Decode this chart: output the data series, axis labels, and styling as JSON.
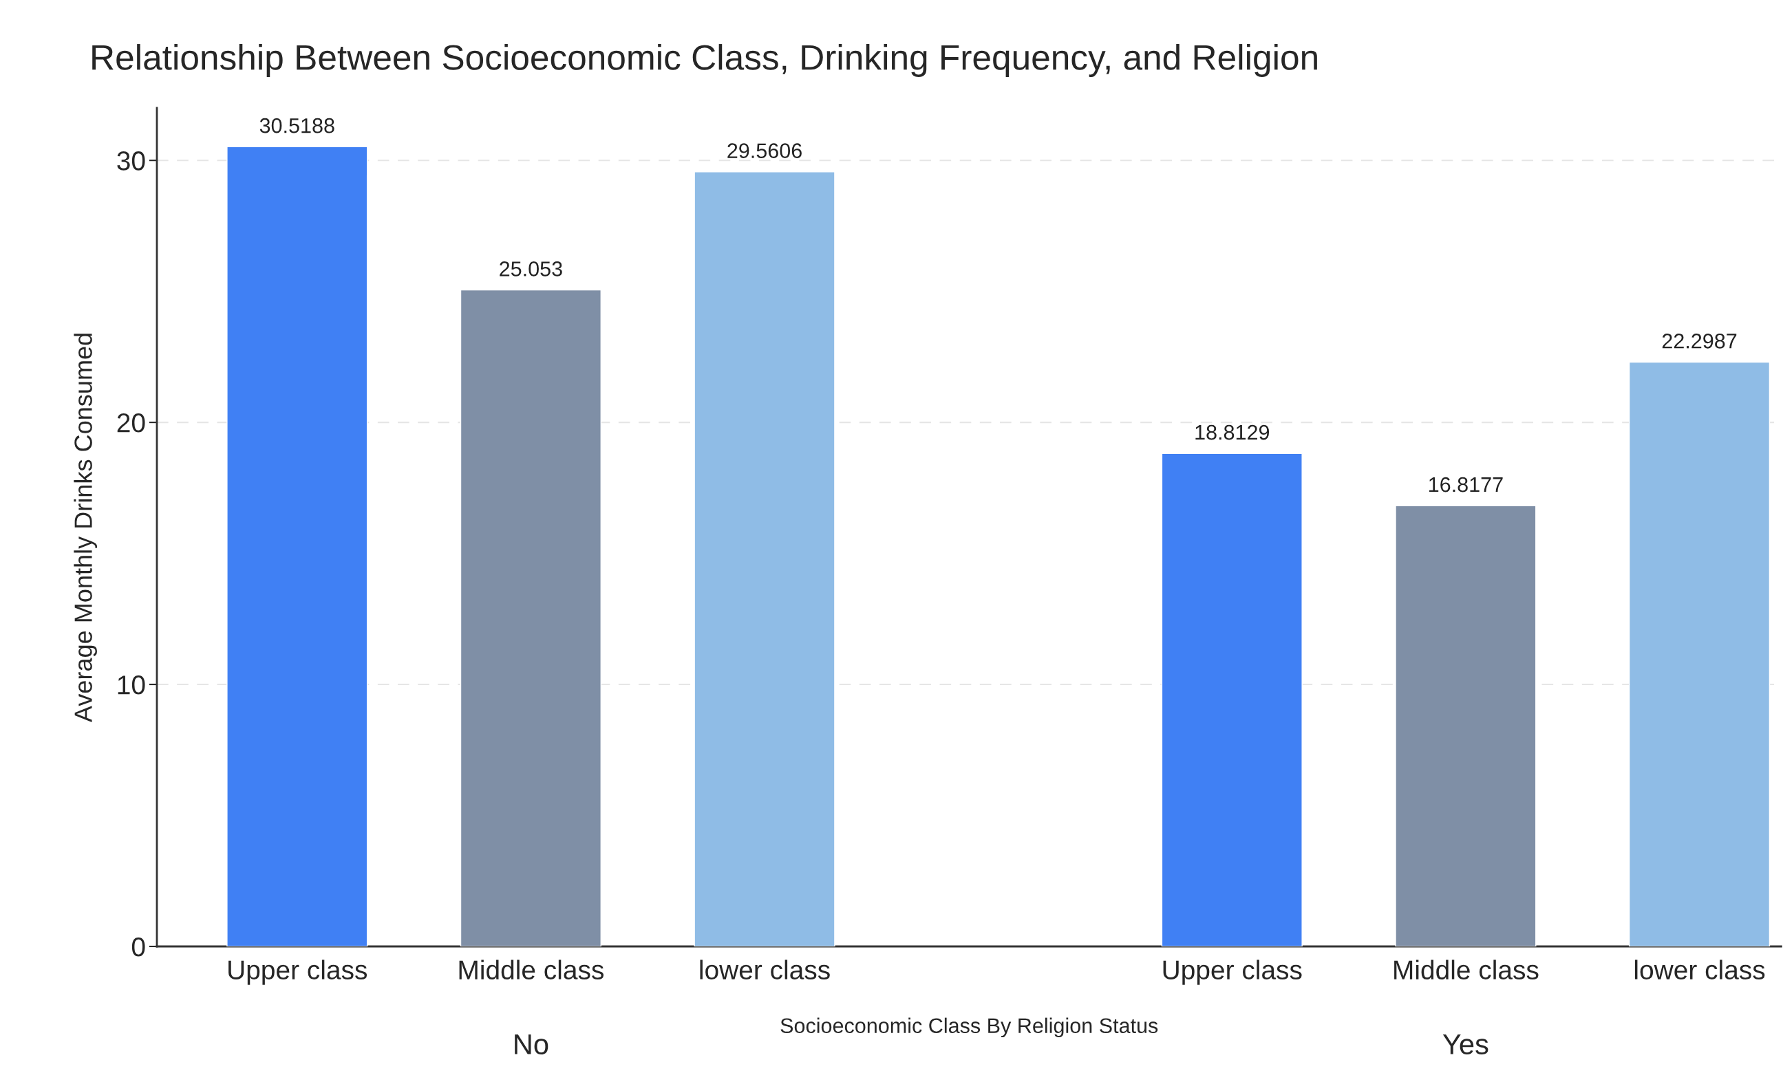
{
  "chart_data": {
    "type": "bar",
    "title": "Relationship Between Socioeconomic Class, Drinking Frequency, and Religion",
    "xlabel": "Socioeconomic Class By Religion Status",
    "ylabel": "Average Monthly Drinks Consumed",
    "categories": [
      "Upper class",
      "Middle class",
      "lower class",
      null,
      "Upper class",
      "Middle class",
      "lower class"
    ],
    "values": [
      30.5188,
      25.053,
      29.5606,
      null,
      18.8129,
      16.8177,
      22.2987
    ],
    "colors": [
      "#4080f4",
      "#7f8fa6",
      "#8fbce6",
      null,
      "#4080f4",
      "#7f8fa6",
      "#8fbce6"
    ],
    "annotations": [
      "No",
      "Yes"
    ],
    "ylim": [
      0,
      32
    ],
    "yticks": [
      0,
      10,
      20,
      30
    ],
    "grid": "y",
    "data_labels": true
  }
}
